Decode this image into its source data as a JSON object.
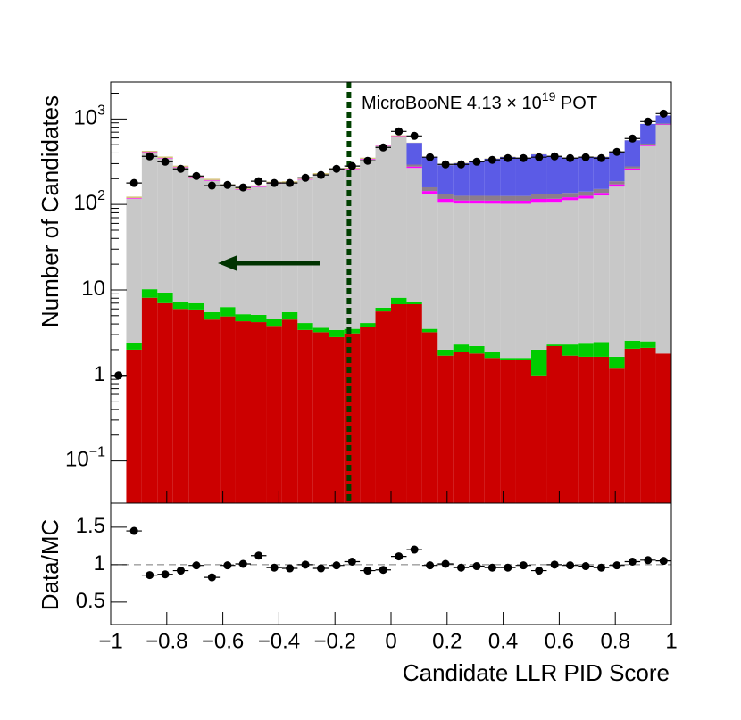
{
  "chart_data": [
    {
      "type": "stacked_histogram",
      "y_label": "Number of Candidates",
      "annotation": [
        "MicroBooNE 4.13 × 10",
        "19",
        " POT"
      ],
      "log_y": true,
      "xlim": [
        -1,
        1
      ],
      "ylim": [
        0.032,
        2700
      ],
      "yticks": [
        {
          "value": 0.1,
          "label": "10",
          "exponent": "−1"
        },
        1,
        10,
        {
          "value": 100,
          "label": "10",
          "exponent": "2"
        },
        {
          "value": 1000,
          "label": "10",
          "exponent": "3"
        }
      ],
      "cut": -0.15,
      "bins": [
        -1,
        -0.9444,
        -0.8889,
        -0.8333,
        -0.7778,
        -0.7222,
        -0.6667,
        -0.6111,
        -0.5556,
        -0.5,
        -0.4444,
        -0.3889,
        -0.3333,
        -0.2778,
        -0.2222,
        -0.1667,
        -0.1111,
        -0.0556,
        0,
        0.0556,
        0.1111,
        0.1667,
        0.2222,
        0.2778,
        0.3333,
        0.3889,
        0.4444,
        0.5,
        0.5556,
        0.6111,
        0.6667,
        0.7222,
        0.7778,
        0.8333,
        0.8889,
        0.9444,
        1
      ],
      "series": [
        {
          "color": "#cc0000",
          "values": [
            0,
            2.0,
            8.1,
            7.0,
            6.0,
            5.9,
            4.5,
            4.9,
            4.3,
            4.2,
            3.8,
            4.5,
            3.4,
            3.2,
            2.8,
            3.1,
            3.7,
            5.6,
            6.8,
            6.8,
            3.2,
            1.7,
            1.9,
            1.8,
            1.6,
            1.5,
            1.5,
            1.0,
            2.2,
            1.7,
            1.65,
            1.65,
            1.2,
            2.05,
            2.1,
            1.8
          ]
        },
        {
          "color": "#00cc00",
          "values": [
            0,
            0.4,
            2.1,
            2.3,
            1.3,
            1.1,
            1.0,
            1.4,
            0.9,
            0.9,
            0.8,
            1.0,
            0.7,
            0.4,
            0.6,
            0.4,
            0.4,
            0.6,
            1.3,
            0.5,
            0.3,
            0.3,
            0.4,
            0.4,
            0.3,
            0.1,
            0.1,
            1.0,
            0.1,
            0.6,
            0.7,
            0.8,
            0.45,
            0.5,
            0.4,
            0
          ]
        },
        {
          "color": "#c8c8c8",
          "values": [
            0,
            114,
            394,
            335,
            262,
            199,
            184,
            157,
            144,
            155,
            171,
            172,
            191,
            217,
            249,
            254,
            333,
            475,
            614,
            260,
            130,
            105,
            100,
            100,
            100,
            100,
            100,
            105,
            105,
            110,
            115,
            125,
            160,
            250,
            480,
            850
          ]
        },
        {
          "color": "#ff00ff",
          "values": [
            0,
            2,
            5,
            5,
            4,
            3,
            3,
            2,
            2,
            2,
            3,
            3,
            3,
            4,
            4,
            4,
            5,
            6,
            8,
            10,
            10,
            9,
            9,
            9,
            9,
            9,
            9,
            9,
            9,
            9,
            9,
            9,
            10,
            11,
            12,
            13
          ]
        },
        {
          "color": "#8c7d8c",
          "values": [
            0,
            0,
            0,
            0,
            0,
            0,
            0,
            0,
            0,
            0,
            0,
            0,
            0,
            0,
            0,
            0,
            0,
            0,
            0,
            15,
            15,
            15,
            15,
            15,
            15,
            15,
            15,
            15,
            15,
            15,
            15,
            15,
            15,
            15,
            20,
            20
          ]
        },
        {
          "color": "#5b5be6",
          "values": [
            0,
            0,
            0,
            0,
            0,
            0,
            0,
            0,
            0,
            0,
            0,
            0,
            0,
            0,
            0,
            0,
            0,
            0,
            0,
            233,
            200,
            157,
            177,
            193,
            217,
            233,
            223,
            254,
            231,
            213,
            220,
            208,
            226,
            285,
            360,
            212
          ]
        },
        {
          "color": "#d4c37c",
          "values": [
            0,
            5,
            15,
            14,
            11,
            8,
            7,
            6,
            5,
            5,
            6,
            6,
            7,
            8,
            8,
            8,
            10,
            12,
            14,
            3,
            3,
            3,
            3,
            3,
            3,
            3,
            3,
            3,
            3,
            3,
            3,
            3,
            3,
            3,
            3,
            3
          ]
        }
      ],
      "data_points": {
        "color": "#000000",
        "values": [
          1,
          178,
          365,
          316,
          261,
          215,
          166,
          169,
          158,
          187,
          178,
          178,
          205,
          221,
          261,
          281,
          324,
          464,
          715,
          634,
          357,
          294,
          294,
          316,
          332,
          348,
          348,
          357,
          365,
          348,
          357,
          348,
          412,
          590,
          931,
          1155
        ]
      }
    },
    {
      "type": "ratio",
      "y_label": "Data/MC",
      "x_label": "Candidate LLR PID Score",
      "xlim": [
        -1,
        1
      ],
      "ylim": [
        0.2,
        1.82
      ],
      "xticks": [
        {
          "value": -1,
          "label": "−1"
        },
        {
          "value": -0.8,
          "label": "−0.8"
        },
        {
          "value": -0.6,
          "label": "−0.6"
        },
        {
          "value": -0.4,
          "label": "−0.4"
        },
        {
          "value": -0.2,
          "label": "−0.2"
        },
        0,
        0.2,
        0.4,
        0.6,
        0.8,
        1
      ],
      "yticks": [
        0.5,
        1,
        1.5
      ],
      "reference_line": 1,
      "color": "#000000",
      "values": [
        null,
        1.45,
        0.86,
        0.87,
        0.92,
        0.99,
        0.83,
        0.99,
        1.01,
        1.12,
        0.96,
        0.95,
        1.0,
        0.95,
        0.99,
        1.04,
        0.92,
        0.93,
        1.11,
        1.2,
        0.99,
        1.01,
        0.96,
        0.98,
        0.96,
        0.96,
        0.99,
        0.92,
        1.0,
        0.99,
        0.98,
        0.96,
        0.99,
        1.04,
        1.06,
        1.05
      ]
    }
  ]
}
